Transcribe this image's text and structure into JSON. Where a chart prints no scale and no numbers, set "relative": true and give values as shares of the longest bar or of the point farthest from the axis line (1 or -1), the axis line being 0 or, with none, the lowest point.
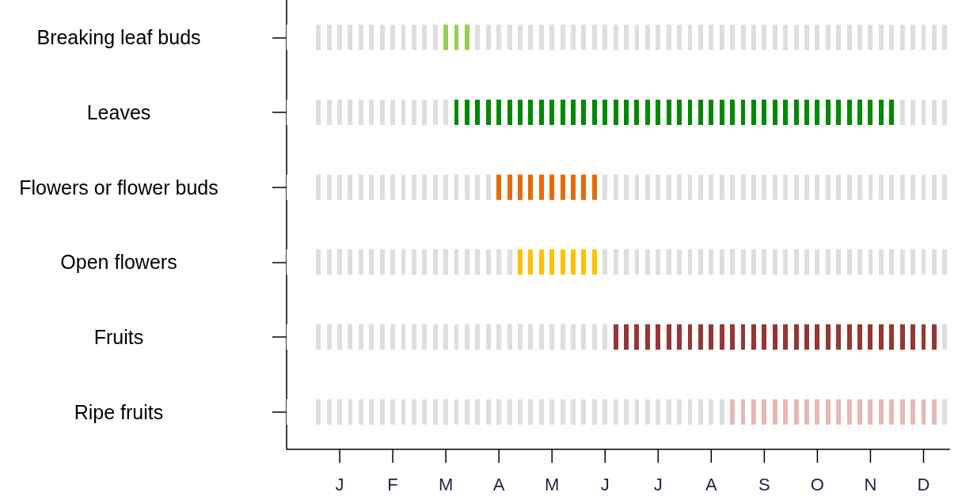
{
  "chart_data": {
    "type": "bar",
    "orientation": "horizontal",
    "relative": true,
    "stacked": true,
    "categories": [
      "Breaking leaf buds",
      "Leaves",
      "Flowers or flower buds",
      "Open flowers",
      "Fruits",
      "Ripe fruits"
    ],
    "series": [
      {
        "color": "#dedede",
        "values": [
          0.232,
          0.248,
          0.312,
          0.344,
          0.488,
          0.664
        ]
      },
      {
        "colors": [
          "#92d050",
          "#008a00",
          "#e46c0a",
          "#ffc000",
          "#953735",
          "#e6b9b8"
        ],
        "values": [
          0.048,
          0.672,
          0.16,
          0.128,
          0.496,
          0.32
        ]
      },
      {
        "color": "#dedede",
        "values": [
          0.72,
          0.08,
          0.528,
          0.528,
          0.016,
          0.016
        ]
      }
    ],
    "annotations": [
      "J",
      "F",
      "M",
      "A",
      "M",
      "J",
      "J",
      "A",
      "S",
      "O",
      "N",
      "D"
    ]
  }
}
